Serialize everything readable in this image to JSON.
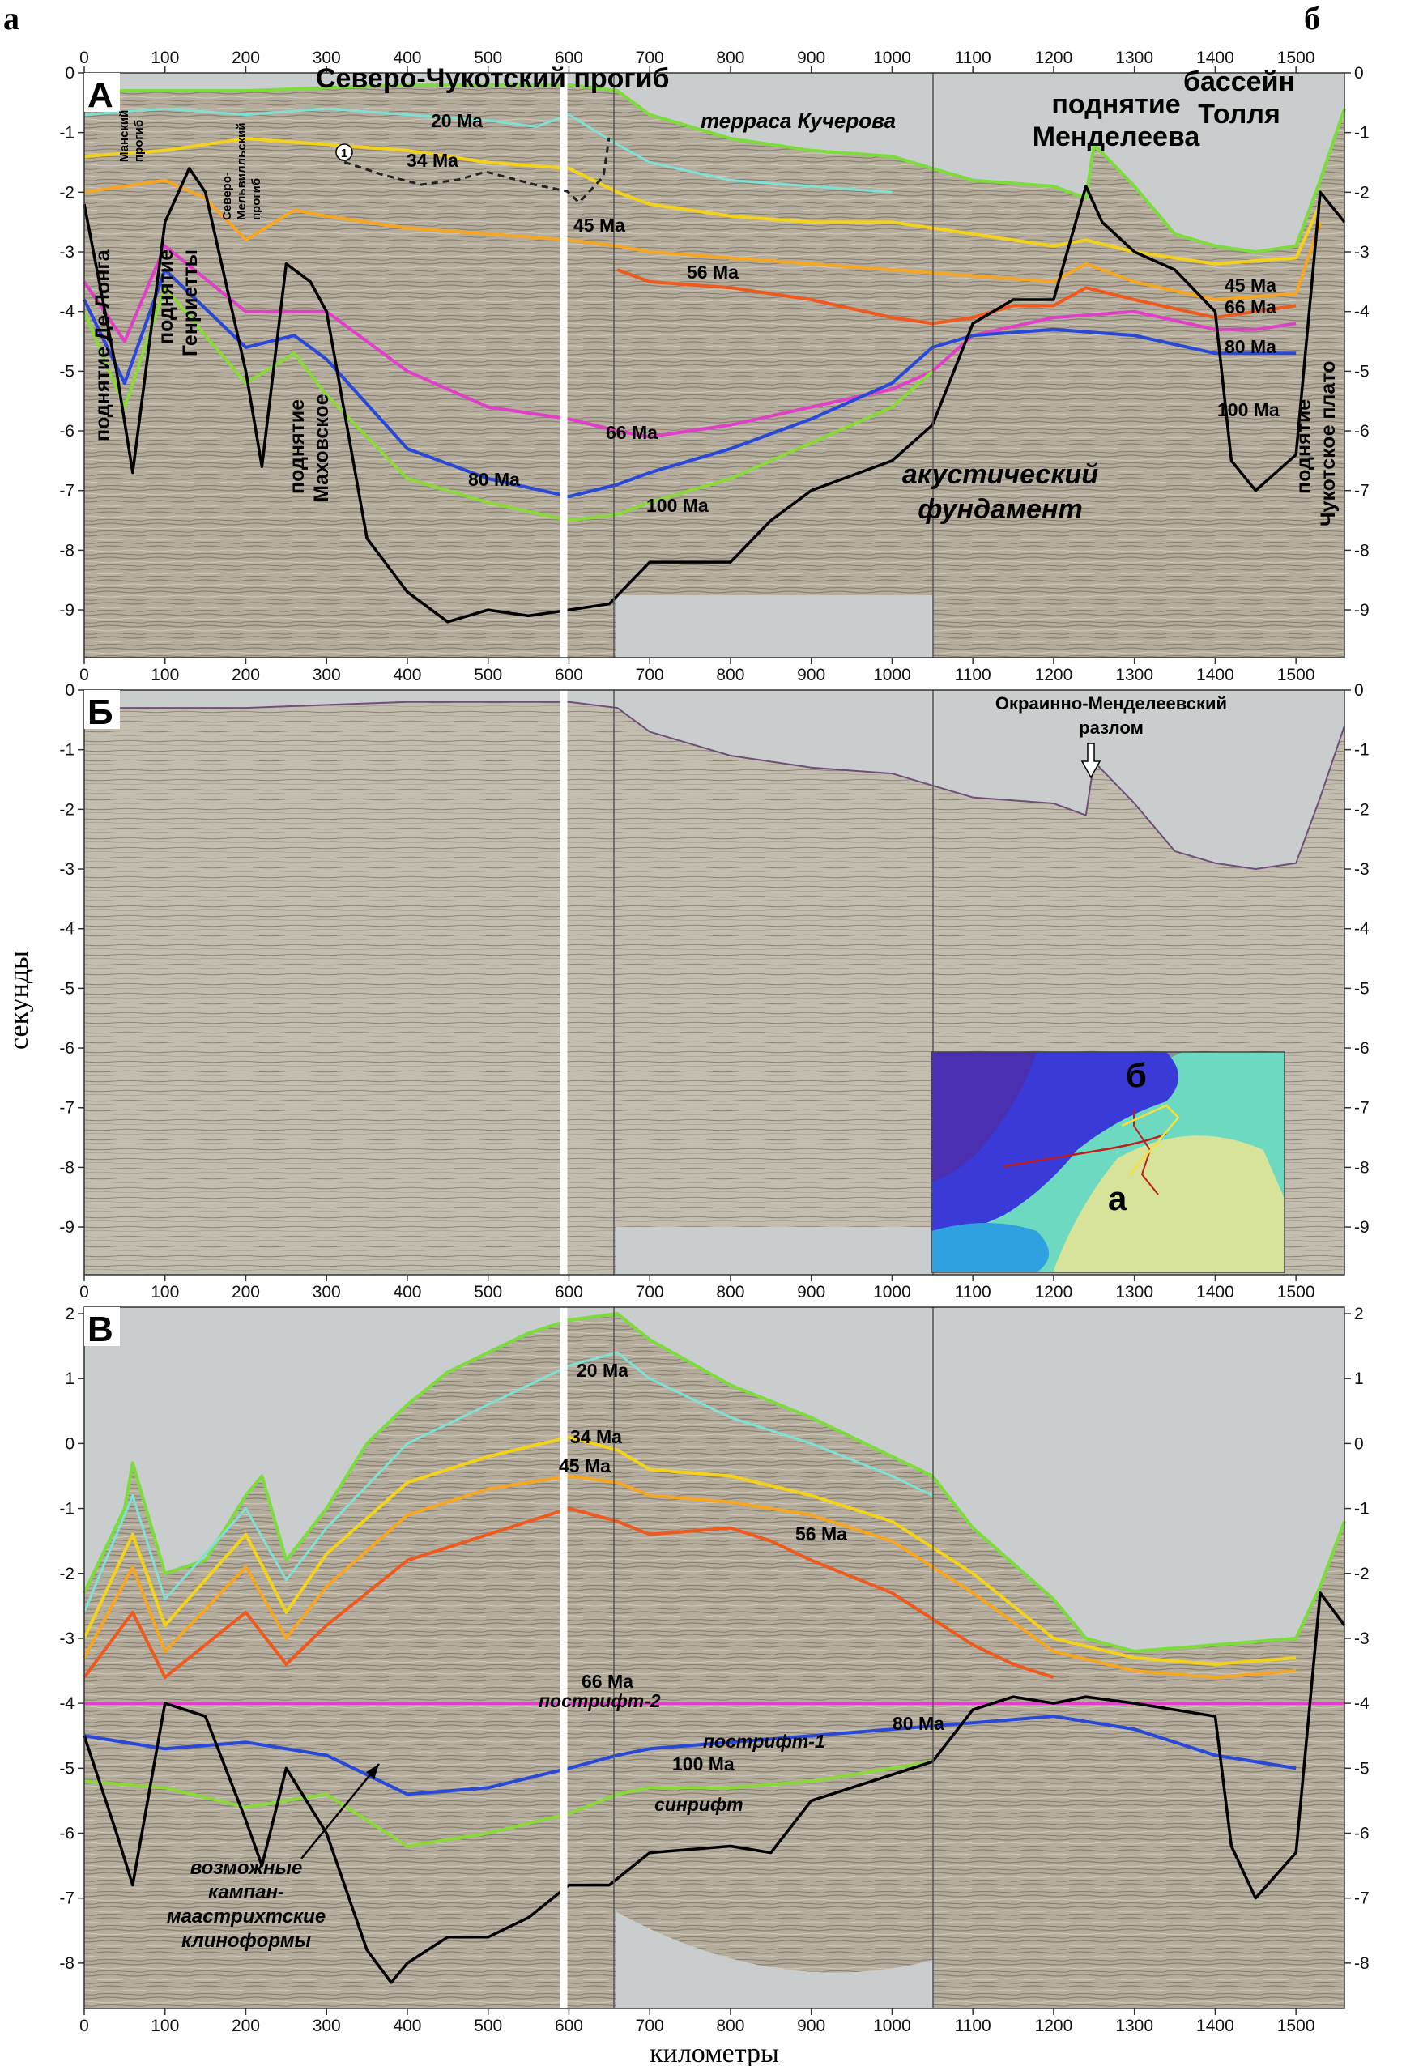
{
  "figure": {
    "corner_left": "а",
    "corner_right": "б",
    "ylabel": "секунды",
    "xlabel": "километры"
  },
  "colors": {
    "seafloor": "#7cdc3c",
    "h20": "#7fe0d6",
    "h34": "#f2d21a",
    "h45": "#f5a623",
    "h56": "#ee5a1e",
    "h66": "#e040c8",
    "h80": "#2848d8",
    "h100": "#8ad83a",
    "basement": "#000000",
    "seismic_bg": "#b3ab9b",
    "water_fill": "#c9cdcd"
  },
  "chart_data": [
    {
      "type": "line",
      "panel": "А",
      "xlim": [
        0,
        1560
      ],
      "ylim": [
        0,
        -9.8
      ],
      "x_ticks": [
        "0",
        "100",
        "200",
        "300",
        "400",
        "500",
        "600",
        "700",
        "800",
        "900",
        "1000",
        "1100",
        "1200",
        "1300",
        "1400",
        "1500"
      ],
      "y_ticks": [
        "0",
        "-1",
        "-2",
        "-3",
        "-4",
        "-5",
        "-6",
        "-7",
        "-8",
        "-9"
      ],
      "series": [
        {
          "key": "seafloor",
          "x": [
            0,
            100,
            200,
            300,
            400,
            500,
            600,
            660,
            700,
            800,
            900,
            1000,
            1050,
            1100,
            1200,
            1240,
            1250,
            1300,
            1350,
            1400,
            1450,
            1500,
            1530,
            1560
          ],
          "y": [
            -0.3,
            -0.3,
            -0.3,
            -0.25,
            -0.2,
            -0.2,
            -0.2,
            -0.3,
            -0.7,
            -1.1,
            -1.3,
            -1.4,
            -1.6,
            -1.8,
            -1.9,
            -2.1,
            -1.2,
            -1.9,
            -2.7,
            -2.9,
            -3.0,
            -2.9,
            -1.8,
            -0.6
          ]
        },
        {
          "key": "h20",
          "x": [
            0,
            100,
            200,
            300,
            400,
            500,
            560,
            600,
            660,
            700,
            800,
            900,
            1000
          ],
          "y": [
            -0.7,
            -0.6,
            -0.7,
            -0.6,
            -0.7,
            -0.8,
            -0.9,
            -0.7,
            -1.2,
            -1.5,
            -1.8,
            -1.9,
            -2.0
          ]
        },
        {
          "key": "h34",
          "x": [
            0,
            100,
            150,
            200,
            300,
            400,
            500,
            600,
            660,
            700,
            800,
            900,
            1000,
            1100,
            1200,
            1240,
            1300,
            1400,
            1500,
            1530
          ],
          "y": [
            -1.4,
            -1.3,
            -1.2,
            -1.1,
            -1.2,
            -1.3,
            -1.5,
            -1.6,
            -2.0,
            -2.2,
            -2.4,
            -2.5,
            -2.5,
            -2.7,
            -2.9,
            -2.8,
            -3.0,
            -3.2,
            -3.1,
            -2.2
          ]
        },
        {
          "key": "h45",
          "x": [
            0,
            100,
            150,
            200,
            260,
            300,
            400,
            500,
            600,
            660,
            700,
            800,
            900,
            1000,
            1100,
            1200,
            1240,
            1300,
            1400,
            1500,
            1530
          ],
          "y": [
            -2.0,
            -1.8,
            -2.1,
            -2.8,
            -2.3,
            -2.4,
            -2.6,
            -2.7,
            -2.8,
            -2.9,
            -3.0,
            -3.1,
            -3.2,
            -3.3,
            -3.4,
            -3.5,
            -3.2,
            -3.5,
            -3.8,
            -3.7,
            -2.5
          ]
        },
        {
          "key": "h56",
          "x": [
            660,
            700,
            800,
            900,
            1000,
            1050,
            1100,
            1150,
            1200,
            1240,
            1300,
            1400,
            1450,
            1500
          ],
          "y": [
            -3.3,
            -3.5,
            -3.6,
            -3.8,
            -4.1,
            -4.2,
            -4.1,
            -3.9,
            -3.9,
            -3.6,
            -3.8,
            -4.1,
            -4.0,
            -3.9
          ]
        },
        {
          "key": "h66",
          "x": [
            0,
            50,
            100,
            200,
            300,
            400,
            500,
            600,
            660,
            700,
            800,
            900,
            1000,
            1050,
            1100,
            1200,
            1300,
            1400,
            1450,
            1500
          ],
          "y": [
            -3.5,
            -4.5,
            -2.9,
            -4.0,
            -4.0,
            -5.0,
            -5.6,
            -5.8,
            -6.0,
            -6.1,
            -5.9,
            -5.6,
            -5.3,
            -5.0,
            -4.4,
            -4.1,
            -4.0,
            -4.3,
            -4.3,
            -4.2
          ]
        },
        {
          "key": "h80",
          "x": [
            0,
            50,
            100,
            200,
            260,
            300,
            400,
            500,
            600,
            660,
            700,
            800,
            900,
            1000,
            1050,
            1100,
            1200,
            1300,
            1400,
            1500
          ],
          "y": [
            -3.8,
            -5.2,
            -3.3,
            -4.6,
            -4.4,
            -4.8,
            -6.3,
            -6.8,
            -7.1,
            -6.9,
            -6.7,
            -6.3,
            -5.8,
            -5.2,
            -4.6,
            -4.4,
            -4.3,
            -4.4,
            -4.7,
            -4.7
          ]
        },
        {
          "key": "h100",
          "x": [
            0,
            50,
            100,
            200,
            260,
            300,
            400,
            500,
            600,
            660,
            700,
            800,
            900,
            1000,
            1050
          ],
          "y": [
            -4.0,
            -5.6,
            -3.6,
            -5.2,
            -4.7,
            -5.4,
            -6.8,
            -7.2,
            -7.5,
            -7.4,
            -7.2,
            -6.8,
            -6.2,
            -5.6,
            -5.0
          ]
        },
        {
          "key": "basement",
          "x": [
            0,
            40,
            60,
            100,
            130,
            150,
            200,
            220,
            250,
            280,
            300,
            350,
            400,
            450,
            500,
            550,
            600,
            650,
            700,
            800,
            850,
            900,
            1000,
            1050,
            1100,
            1150,
            1200,
            1240,
            1260,
            1300,
            1350,
            1400,
            1420,
            1450,
            1500,
            1530,
            1560
          ],
          "y": [
            -2.2,
            -5.0,
            -6.7,
            -2.5,
            -1.6,
            -2.0,
            -5.0,
            -6.6,
            -3.2,
            -3.5,
            -4.0,
            -7.8,
            -8.7,
            -9.2,
            -9.0,
            -9.1,
            -9.0,
            -8.9,
            -8.2,
            -8.2,
            -7.5,
            -7.0,
            -6.5,
            -5.9,
            -4.2,
            -3.8,
            -3.8,
            -1.9,
            -2.5,
            -3.0,
            -3.3,
            -4.0,
            -6.5,
            -7.0,
            -6.4,
            -2.0,
            -2.5
          ]
        }
      ]
    },
    {
      "type": "line",
      "panel": "Б",
      "xlim": [
        0,
        1560
      ],
      "ylim": [
        0,
        -9.8
      ],
      "x_ticks": [
        "0",
        "100",
        "200",
        "300",
        "400",
        "500",
        "600",
        "700",
        "800",
        "900",
        "1000",
        "1100",
        "1200",
        "1300",
        "1400",
        "1500"
      ],
      "y_ticks": [
        "0",
        "-1",
        "-2",
        "-3",
        "-4",
        "-5",
        "-6",
        "-7",
        "-8",
        "-9"
      ],
      "series": [
        {
          "key": "seafloor_plain",
          "x": [
            0,
            100,
            200,
            300,
            400,
            500,
            600,
            660,
            700,
            800,
            900,
            1000,
            1050,
            1100,
            1200,
            1240,
            1250,
            1300,
            1350,
            1400,
            1450,
            1500,
            1530,
            1560
          ],
          "y": [
            -0.3,
            -0.3,
            -0.3,
            -0.25,
            -0.2,
            -0.2,
            -0.2,
            -0.3,
            -0.7,
            -1.1,
            -1.3,
            -1.4,
            -1.6,
            -1.8,
            -1.9,
            -2.1,
            -1.2,
            -1.9,
            -2.7,
            -2.9,
            -3.0,
            -2.9,
            -1.8,
            -0.6
          ]
        }
      ]
    },
    {
      "type": "line",
      "panel": "В",
      "xlim": [
        0,
        1560
      ],
      "ylim": [
        2.1,
        -8.7
      ],
      "x_ticks": [
        "0",
        "100",
        "200",
        "300",
        "400",
        "500",
        "600",
        "700",
        "800",
        "900",
        "1000",
        "1100",
        "1200",
        "1300",
        "1400",
        "1500"
      ],
      "y_ticks": [
        "2",
        "1",
        "0",
        "-1",
        "-2",
        "-3",
        "-4",
        "-5",
        "-6",
        "-7",
        "-8"
      ],
      "series": [
        {
          "key": "seafloor",
          "x": [
            0,
            50,
            60,
            100,
            150,
            200,
            220,
            250,
            300,
            350,
            400,
            450,
            500,
            550,
            600,
            660,
            700,
            800,
            900,
            1000,
            1050,
            1100,
            1200,
            1240,
            1300,
            1400,
            1500,
            1530,
            1560
          ],
          "y": [
            -2.3,
            -1.0,
            -0.3,
            -2.0,
            -1.8,
            -0.8,
            -0.5,
            -1.8,
            -1.0,
            0.0,
            0.6,
            1.1,
            1.4,
            1.7,
            1.9,
            2.0,
            1.6,
            0.9,
            0.4,
            -0.2,
            -0.5,
            -1.3,
            -2.4,
            -3.0,
            -3.2,
            -3.1,
            -3.0,
            -2.2,
            -1.2
          ]
        },
        {
          "key": "h20",
          "x": [
            0,
            60,
            100,
            200,
            250,
            300,
            400,
            500,
            600,
            660,
            700,
            800,
            900,
            1000,
            1050
          ],
          "y": [
            -2.6,
            -0.8,
            -2.4,
            -1.0,
            -2.1,
            -1.3,
            0.0,
            0.6,
            1.2,
            1.4,
            1.0,
            0.4,
            0.0,
            -0.5,
            -0.8
          ]
        },
        {
          "key": "h34",
          "x": [
            0,
            60,
            100,
            200,
            250,
            300,
            400,
            500,
            600,
            660,
            700,
            800,
            900,
            1000,
            1100,
            1200,
            1300,
            1400,
            1500
          ],
          "y": [
            -3.0,
            -1.4,
            -2.8,
            -1.4,
            -2.6,
            -1.7,
            -0.6,
            -0.2,
            0.1,
            -0.1,
            -0.4,
            -0.5,
            -0.8,
            -1.2,
            -2.0,
            -3.0,
            -3.3,
            -3.4,
            -3.3
          ]
        },
        {
          "key": "h45",
          "x": [
            0,
            60,
            100,
            200,
            250,
            300,
            400,
            500,
            600,
            660,
            700,
            800,
            900,
            1000,
            1100,
            1200,
            1300,
            1400,
            1500
          ],
          "y": [
            -3.3,
            -1.9,
            -3.2,
            -1.9,
            -3.0,
            -2.2,
            -1.1,
            -0.7,
            -0.5,
            -0.6,
            -0.8,
            -0.9,
            -1.1,
            -1.5,
            -2.3,
            -3.2,
            -3.5,
            -3.6,
            -3.5
          ]
        },
        {
          "key": "h56",
          "x": [
            0,
            60,
            100,
            200,
            250,
            300,
            400,
            500,
            600,
            660,
            700,
            800,
            850,
            900,
            1000,
            1050,
            1100,
            1150,
            1200
          ],
          "y": [
            -3.6,
            -2.6,
            -3.6,
            -2.6,
            -3.4,
            -2.8,
            -1.8,
            -1.4,
            -1.0,
            -1.2,
            -1.4,
            -1.3,
            -1.5,
            -1.8,
            -2.3,
            -2.7,
            -3.1,
            -3.4,
            -3.6
          ]
        },
        {
          "key": "h66",
          "x": [
            0,
            1560
          ],
          "y": [
            -4.0,
            -4.0
          ]
        },
        {
          "key": "h80",
          "x": [
            0,
            100,
            200,
            300,
            400,
            500,
            600,
            660,
            700,
            800,
            900,
            1000,
            1100,
            1200,
            1300,
            1400,
            1500
          ],
          "y": [
            -4.5,
            -4.7,
            -4.6,
            -4.8,
            -5.4,
            -5.3,
            -5.0,
            -4.8,
            -4.7,
            -4.6,
            -4.5,
            -4.4,
            -4.3,
            -4.2,
            -4.4,
            -4.8,
            -5.0
          ]
        },
        {
          "key": "h100",
          "x": [
            0,
            100,
            200,
            300,
            400,
            500,
            600,
            660,
            700,
            800,
            900,
            1000,
            1050
          ],
          "y": [
            -5.2,
            -5.3,
            -5.6,
            -5.4,
            -6.2,
            -6.0,
            -5.7,
            -5.4,
            -5.3,
            -5.3,
            -5.2,
            -5.0,
            -4.9
          ]
        },
        {
          "key": "basement",
          "x": [
            0,
            40,
            60,
            100,
            150,
            200,
            220,
            250,
            300,
            350,
            380,
            400,
            450,
            500,
            550,
            600,
            650,
            700,
            800,
            850,
            900,
            1000,
            1050,
            1100,
            1150,
            1200,
            1240,
            1300,
            1400,
            1420,
            1450,
            1500,
            1530,
            1560
          ],
          "y": [
            -4.5,
            -6.0,
            -6.8,
            -4.0,
            -4.2,
            -5.8,
            -6.5,
            -5.0,
            -6.0,
            -7.8,
            -8.3,
            -8.0,
            -7.6,
            -7.6,
            -7.3,
            -6.8,
            -6.8,
            -6.3,
            -6.2,
            -6.3,
            -5.5,
            -5.1,
            -4.9,
            -4.1,
            -3.9,
            -4.0,
            -3.9,
            -4.0,
            -4.2,
            -6.2,
            -7.0,
            -6.3,
            -2.3,
            -2.8
          ]
        }
      ]
    }
  ],
  "panelA": {
    "letter": "А",
    "title_trough": "Северо-Чукотский прогиб",
    "terrace": "терраса Кучерова",
    "mendeleev_1": "поднятие",
    "mendeleev_2": "Менделеева",
    "toll_1": "бассейн",
    "toll_2": "Толля",
    "delong": "поднятие Де-Лонга",
    "mansky_1": "Манский",
    "mansky_2": "прогиб",
    "henrietta_1": "поднятие",
    "henrietta_2": "Генриетты",
    "melville_1": "Северо-",
    "melville_2": "Мельвилльский",
    "melville_3": "прогиб",
    "makhov_1": "поднятие",
    "makhov_2": "Маховское",
    "chukchi_1": "поднятие",
    "chukchi_2": "Чукотское плато",
    "basement_1": "акустический",
    "basement_2": "фундамент",
    "marker": "1",
    "age20": "20 Ma",
    "age34": "34 Ma",
    "age45": "45 Ma",
    "age56": "56 Ma",
    "age66": "66 Ma",
    "age80": "80 Ma",
    "age100": "100 Ma",
    "age45r": "45 Ma",
    "age66r": "66 Ma",
    "age80r": "80 Ma",
    "age100r": "100 Ma"
  },
  "panelB": {
    "letter": "Б",
    "fault_1": "Окраинно-Менделеевский",
    "fault_2": "разлом",
    "inset_a": "а",
    "inset_b": "б"
  },
  "panelV": {
    "letter": "В",
    "age20": "20 Ma",
    "age34": "34 Ma",
    "age45": "45 Ma",
    "age56": "56 Ma",
    "age66": "66 Ma",
    "age80": "80 Ma",
    "age100": "100 Ma",
    "postrift2": "пострифт-2",
    "postrift1": "пострифт-1",
    "synrift": "синрифт",
    "clino_1": "возможные",
    "clino_2": "кампан-",
    "clino_3": "маастрихтские",
    "clino_4": "клиноформы"
  }
}
